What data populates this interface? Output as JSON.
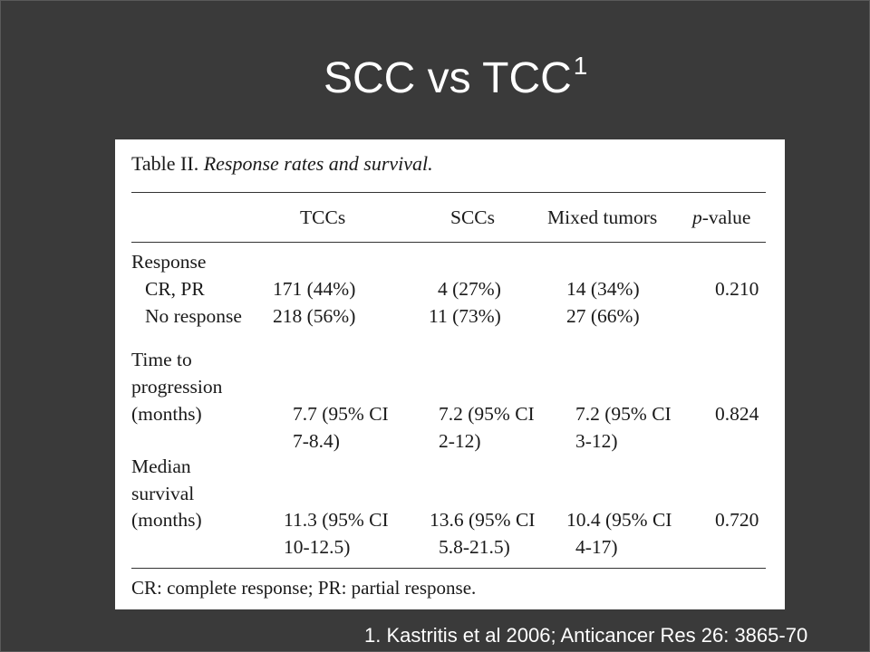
{
  "slide": {
    "title": "SCC vs TCC",
    "title_superscript": "1",
    "citation": "1. Kastritis et al 2006; Anticancer Res 26: 3865-70"
  },
  "table": {
    "caption_label": "Table II.",
    "caption_title": "Response rates and survival.",
    "headers": {
      "tccs": "TCCs",
      "sccs": "SCCs",
      "mixed": "Mixed tumors",
      "p_italic": "p",
      "p_rest": "-value"
    },
    "response": {
      "section": "Response",
      "cr_pr": {
        "label": "CR, PR",
        "tcc": "171 (44%)",
        "scc": "4 (27%)",
        "mixed": "14 (34%)",
        "p": "0.210"
      },
      "no_response": {
        "label": "No response",
        "tcc": "218 (56%)",
        "scc": "11 (73%)",
        "mixed": "27 (66%)"
      }
    },
    "ttp": {
      "label_1": "Time to",
      "label_2": "progression",
      "label_3": "(months)",
      "tcc_1": "7.7 (95% CI",
      "tcc_2": "7-8.4)",
      "scc_1": "7.2 (95% CI",
      "scc_2": "2-12)",
      "mixed_1": "7.2 (95% CI",
      "mixed_2": "3-12)",
      "p": "0.824"
    },
    "median_survival": {
      "label_1": "Median",
      "label_2": "survival",
      "label_3": "(months)",
      "tcc_1": "11.3 (95% CI",
      "tcc_2": "10-12.5)",
      "scc_1": "13.6 (95% CI",
      "scc_2": "5.8-21.5)",
      "mixed_1": "10.4 (95% CI",
      "mixed_2": "4-17)",
      "p": "0.720"
    },
    "footnote": "CR: complete response; PR: partial response."
  }
}
